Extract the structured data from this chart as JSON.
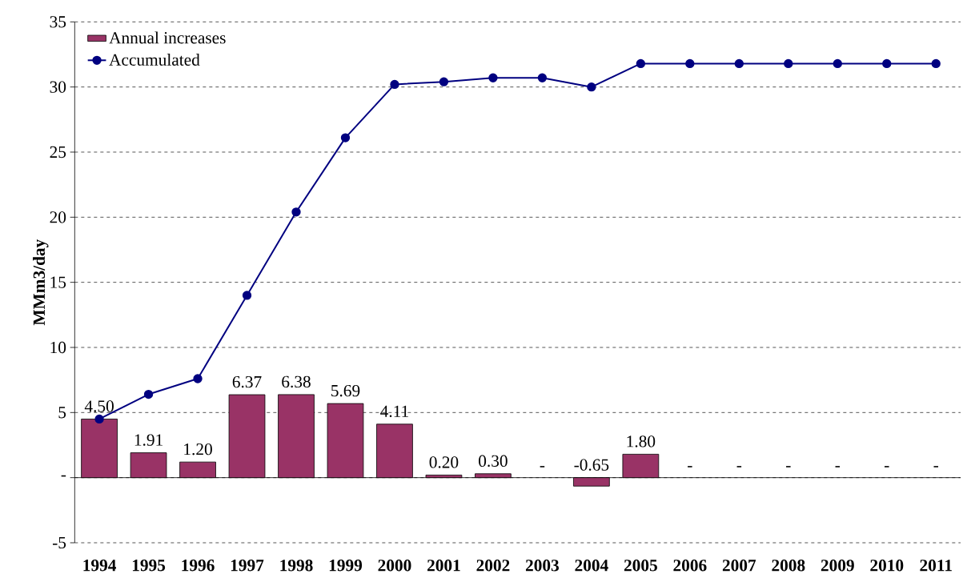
{
  "chart_data": {
    "type": "bar",
    "ylabel": "MMm3/day",
    "categories": [
      "1994",
      "1995",
      "1996",
      "1997",
      "1998",
      "1999",
      "2000",
      "2001",
      "2002",
      "2003",
      "2004",
      "2005",
      "2006",
      "2007",
      "2008",
      "2009",
      "2010",
      "2011"
    ],
    "series": [
      {
        "name": "Annual increases",
        "color": "#993366",
        "values": [
          4.5,
          1.91,
          1.2,
          6.37,
          6.38,
          5.69,
          4.11,
          0.2,
          0.3,
          0,
          -0.65,
          1.8,
          0,
          0,
          0,
          0,
          0,
          0
        ],
        "value_labels": [
          "4.50",
          "1.91",
          "1.20",
          "6.37",
          "6.38",
          "5.69",
          "4.11",
          "0.20",
          "0.30",
          "-",
          "-0.65",
          "1.80",
          "-",
          "-",
          "-",
          "-",
          "-",
          "-"
        ]
      },
      {
        "name": "Accumulated",
        "type": "line",
        "color": "#000080",
        "marker": "circle",
        "values": [
          4.5,
          6.4,
          7.6,
          14.0,
          20.4,
          26.1,
          30.2,
          30.4,
          30.7,
          30.7,
          30.0,
          31.8,
          31.8,
          31.8,
          31.8,
          31.8,
          31.8,
          31.8
        ]
      }
    ],
    "ylim": [
      -5,
      35
    ],
    "yticks": [
      -5,
      {
        "value": 0,
        "label": "-"
      },
      5,
      10,
      15,
      20,
      25,
      30,
      35
    ],
    "grid": "y",
    "legend": "top left"
  }
}
